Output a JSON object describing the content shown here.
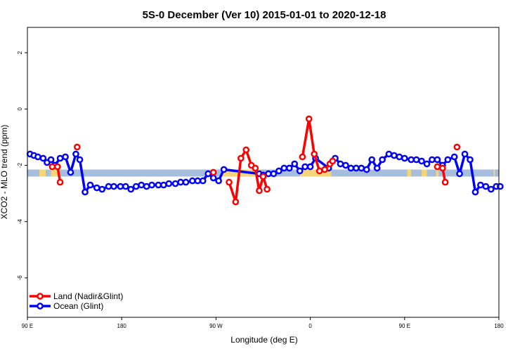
{
  "chart_data": {
    "type": "line",
    "title": "5S-0 December (Ver 10)   2015-01-01 to 2020-12-18",
    "xlabel": "Longitude (deg E)",
    "ylabel": "XCO2 - MLO trend (ppm)",
    "xlim": [
      90,
      450
    ],
    "ylim": [
      -7.4,
      2.9
    ],
    "x_ticks": [
      {
        "value": 90,
        "label": "90 E"
      },
      {
        "value": 162,
        "label": "180"
      },
      {
        "value": 234,
        "label": "90 W"
      },
      {
        "value": 306,
        "label": "0"
      },
      {
        "value": 378,
        "label": "90 E"
      },
      {
        "value": 450,
        "label": "180"
      }
    ],
    "y_ticks": [
      {
        "value": 2,
        "label": "2"
      },
      {
        "value": 0,
        "label": "0"
      },
      {
        "value": -2,
        "label": "-2"
      },
      {
        "value": -4,
        "label": "-4"
      },
      {
        "value": -6,
        "label": "-6"
      }
    ],
    "band": {
      "ymin": -2.4,
      "ymax": -2.15,
      "color": "#a6bddb",
      "land_color": "#f5d57a",
      "land_ranges": [
        [
          99,
          104
        ],
        [
          108,
          113
        ],
        [
          239,
          268
        ],
        [
          298,
          322
        ],
        [
          380,
          383
        ],
        [
          391,
          395
        ],
        [
          402,
          404
        ],
        [
          446,
          447
        ]
      ]
    },
    "series": [
      {
        "name": "Land (Nadir&Glint)",
        "color": "#ff0000",
        "segments": [
          [
            [
              109,
              -2.05
            ],
            [
              113,
              -2.05
            ],
            [
              115,
              -2.6
            ]
          ],
          [
            [
              128,
              -1.35
            ]
          ],
          [
            [
              232,
              -2.25
            ]
          ],
          [
            [
              244,
              -2.6
            ],
            [
              249,
              -3.3
            ],
            [
              253,
              -1.75
            ],
            [
              257,
              -1.45
            ],
            [
              261,
              -2.0
            ],
            [
              264,
              -2.1
            ],
            [
              267,
              -2.9
            ],
            [
              270,
              -2.4
            ],
            [
              273,
              -2.85
            ]
          ],
          [
            [
              300,
              -1.7
            ],
            [
              305,
              -0.35
            ],
            [
              309,
              -1.6
            ],
            [
              313,
              -2.2
            ],
            [
              317,
              -2.15
            ],
            [
              321,
              -1.95
            ],
            [
              323,
              -1.85
            ]
          ],
          [
            [
              403,
              -2.05
            ],
            [
              407,
              -2.1
            ],
            [
              409,
              -2.6
            ]
          ],
          [
            [
              418,
              -1.35
            ]
          ]
        ]
      },
      {
        "name": "Ocean (Glint)",
        "color": "#0000ff",
        "points": [
          [
            92,
            -1.6
          ],
          [
            95,
            -1.65
          ],
          [
            98,
            -1.7
          ],
          [
            102,
            -1.75
          ],
          [
            105,
            -1.9
          ],
          [
            108,
            -1.8
          ],
          [
            111,
            -2.0
          ],
          [
            115,
            -1.75
          ],
          [
            119,
            -1.7
          ],
          [
            123,
            -2.25
          ],
          [
            127,
            -1.6
          ],
          [
            130,
            -1.8
          ],
          [
            134,
            -2.95
          ],
          [
            138,
            -2.7
          ],
          [
            143,
            -2.8
          ],
          [
            147,
            -2.85
          ],
          [
            152,
            -2.75
          ],
          [
            156,
            -2.75
          ],
          [
            161,
            -2.75
          ],
          [
            165,
            -2.75
          ],
          [
            169,
            -2.85
          ],
          [
            173,
            -2.75
          ],
          [
            177,
            -2.7
          ],
          [
            181,
            -2.75
          ],
          [
            185,
            -2.7
          ],
          [
            190,
            -2.7
          ],
          [
            194,
            -2.7
          ],
          [
            198,
            -2.65
          ],
          [
            203,
            -2.65
          ],
          [
            207,
            -2.6
          ],
          [
            211,
            -2.6
          ],
          [
            216,
            -2.55
          ],
          [
            220,
            -2.55
          ],
          [
            224,
            -2.55
          ],
          [
            228,
            -2.3
          ],
          [
            232,
            -2.45
          ],
          [
            236,
            -2.55
          ],
          [
            240,
            -2.15
          ],
          [
            267,
            -2.3
          ],
          [
            270,
            -2.35
          ],
          [
            274,
            -2.3
          ],
          [
            278,
            -2.3
          ],
          [
            282,
            -2.2
          ],
          [
            286,
            -2.1
          ],
          [
            290,
            -2.1
          ],
          [
            294,
            -1.95
          ],
          [
            298,
            -2.2
          ],
          [
            302,
            -2.05
          ],
          [
            306,
            -2.05
          ],
          [
            310,
            -1.75
          ],
          [
            320,
            -2.1
          ],
          [
            325,
            -1.75
          ],
          [
            329,
            -1.95
          ],
          [
            333,
            -2.0
          ],
          [
            337,
            -2.1
          ],
          [
            341,
            -2.1
          ],
          [
            345,
            -2.1
          ],
          [
            349,
            -2.15
          ],
          [
            353,
            -1.8
          ],
          [
            357,
            -2.1
          ],
          [
            361,
            -1.8
          ],
          [
            366,
            -1.6
          ],
          [
            370,
            -1.65
          ],
          [
            374,
            -1.7
          ],
          [
            378,
            -1.75
          ],
          [
            383,
            -1.8
          ],
          [
            387,
            -1.8
          ],
          [
            391,
            -1.85
          ],
          [
            395,
            -1.95
          ],
          [
            399,
            -1.8
          ],
          [
            403,
            -1.8
          ],
          [
            407,
            -2.0
          ],
          [
            411,
            -1.8
          ],
          [
            416,
            -1.7
          ],
          [
            420,
            -2.3
          ],
          [
            424,
            -1.6
          ],
          [
            428,
            -1.8
          ],
          [
            432,
            -2.95
          ],
          [
            436,
            -2.7
          ],
          [
            440,
            -2.75
          ],
          [
            444,
            -2.85
          ],
          [
            448,
            -2.75
          ],
          [
            451,
            -2.75
          ]
        ]
      }
    ],
    "legend": {
      "position": "bottom-left",
      "entries": [
        {
          "label": "Land (Nadir&Glint)",
          "color": "#ff0000"
        },
        {
          "label": "Ocean (Glint)",
          "color": "#0000ff"
        }
      ]
    }
  }
}
